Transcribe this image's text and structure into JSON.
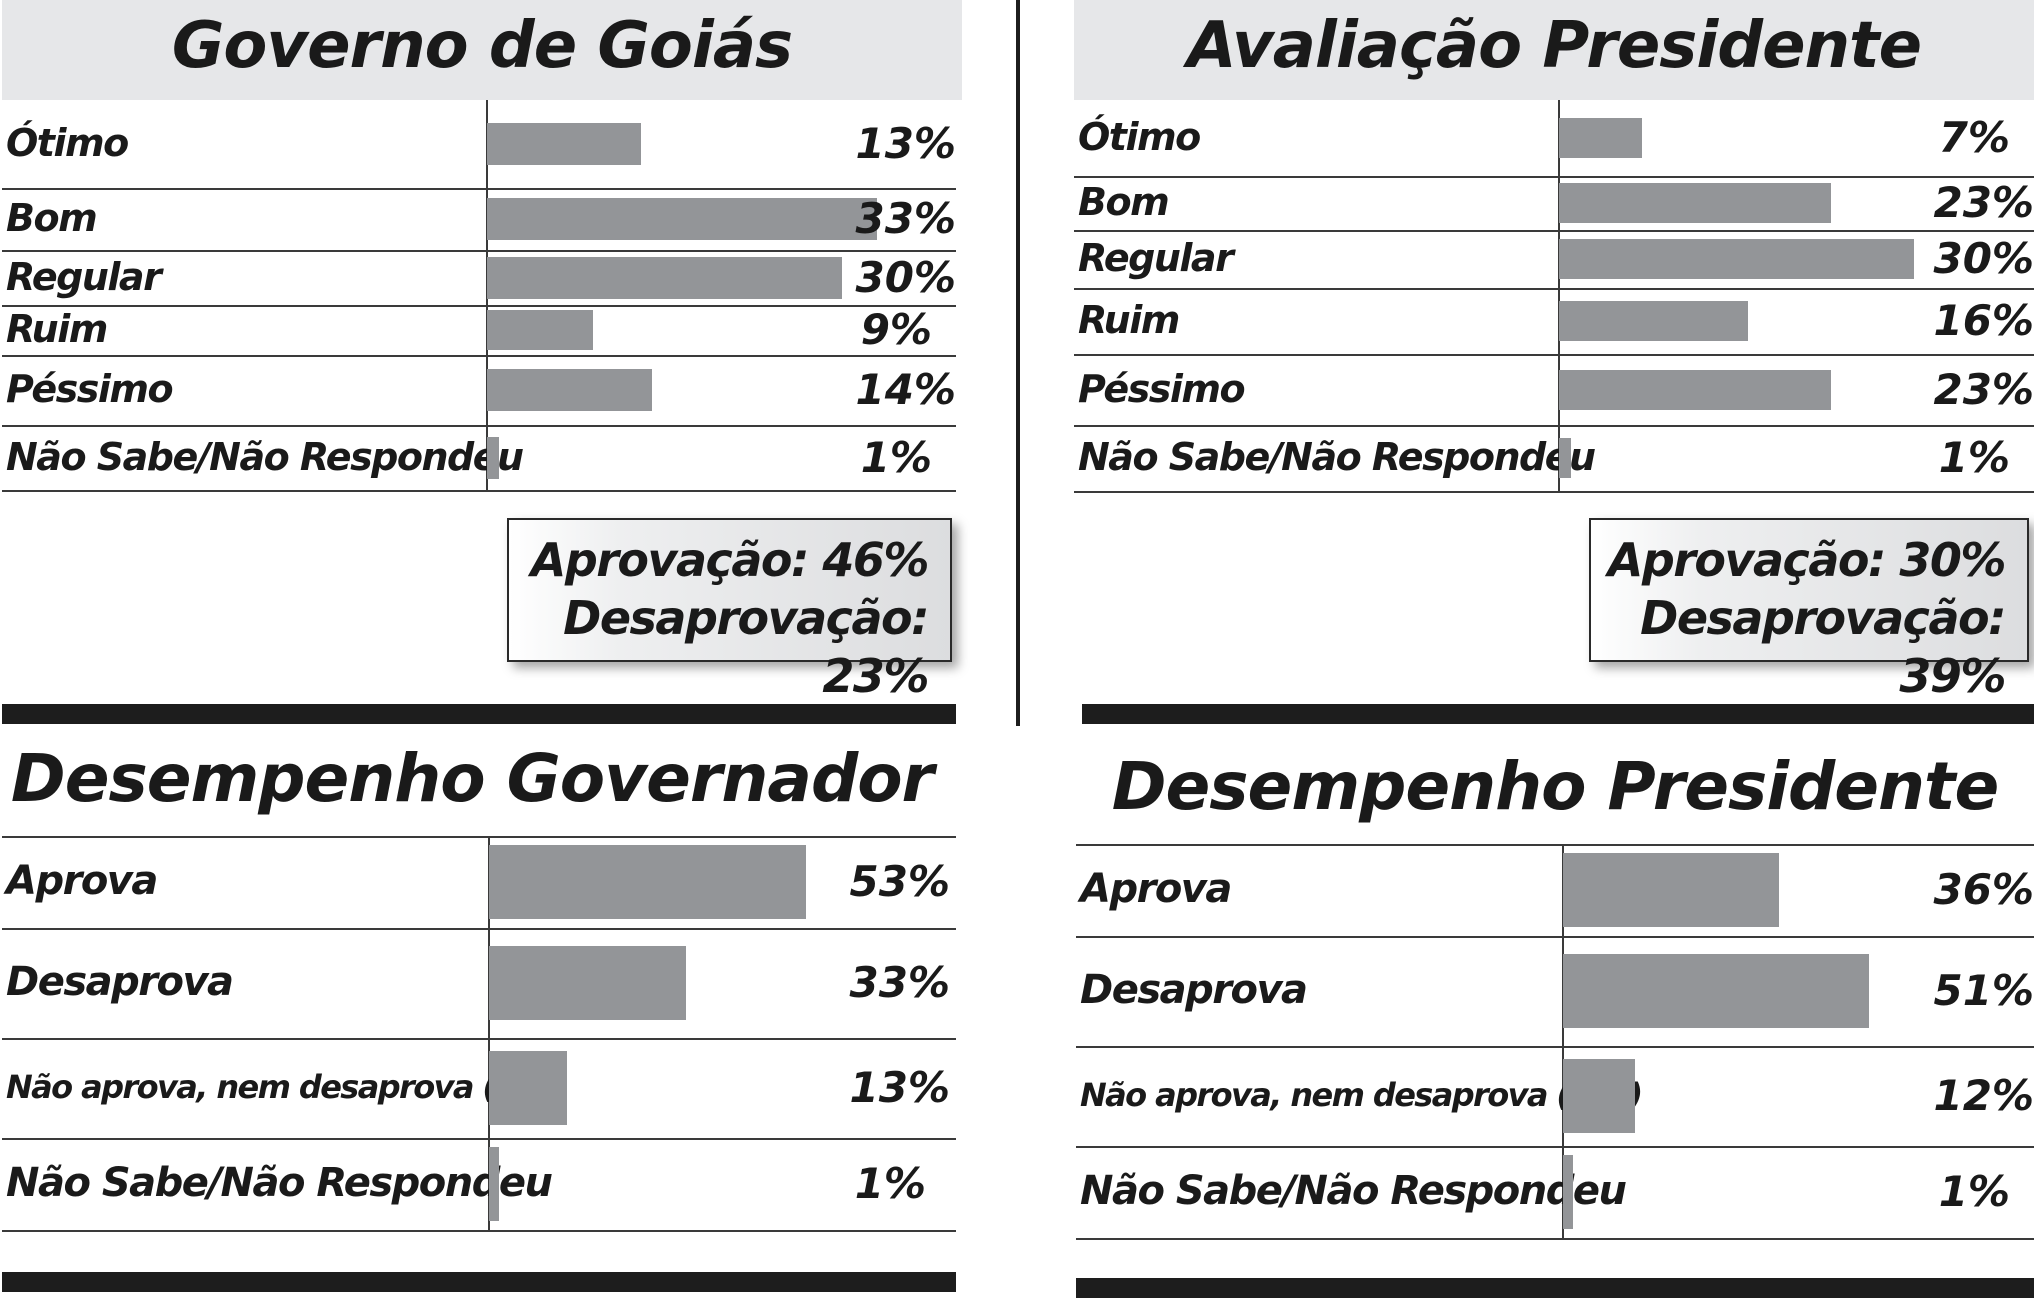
{
  "chart_data": [
    {
      "type": "bar",
      "title": "Governo de Goiás",
      "categories": [
        "Ótimo",
        "Bom",
        "Regular",
        "Ruim",
        "Péssimo",
        "Não Sabe/Não Respondeu"
      ],
      "values": [
        13,
        33,
        30,
        9,
        14,
        1
      ],
      "value_labels": [
        "13%",
        "33%",
        "30%",
        "9%",
        "14%",
        "1%"
      ],
      "summary": [
        "Aprovação: 46%",
        "Desaprovação: 23%"
      ]
    },
    {
      "type": "bar",
      "title": "Avaliação Presidente",
      "categories": [
        "Ótimo",
        "Bom",
        "Regular",
        "Ruim",
        "Péssimo",
        "Não Sabe/Não Respondeu"
      ],
      "values": [
        7,
        23,
        30,
        16,
        23,
        1
      ],
      "value_labels": [
        "7%",
        "23%",
        "30%",
        "16%",
        "23%",
        "1%"
      ],
      "summary": [
        "Aprovação: 30%",
        "Desaprovação: 39%"
      ]
    },
    {
      "type": "bar",
      "title": "Desempenho Governador",
      "categories": [
        "Aprova",
        "Desaprova",
        "Não aprova, nem desaprova (Esp)",
        "Não Sabe/Não Respondeu"
      ],
      "values": [
        53,
        33,
        13,
        1
      ],
      "value_labels": [
        "53%",
        "33%",
        "13%",
        "1%"
      ]
    },
    {
      "type": "bar",
      "title": "Desempenho Presidente",
      "categories": [
        "Aprova",
        "Desaprova",
        "Não aprova, nem desaprova (Esp)",
        "Não Sabe/Não Respondeu"
      ],
      "values": [
        36,
        51,
        12,
        1
      ],
      "value_labels": [
        "36%",
        "51%",
        "12%",
        "1%"
      ]
    }
  ],
  "colors": {
    "bar": "#939598",
    "title_band": "#e6e7e9",
    "rule": "#1d1d1d"
  }
}
